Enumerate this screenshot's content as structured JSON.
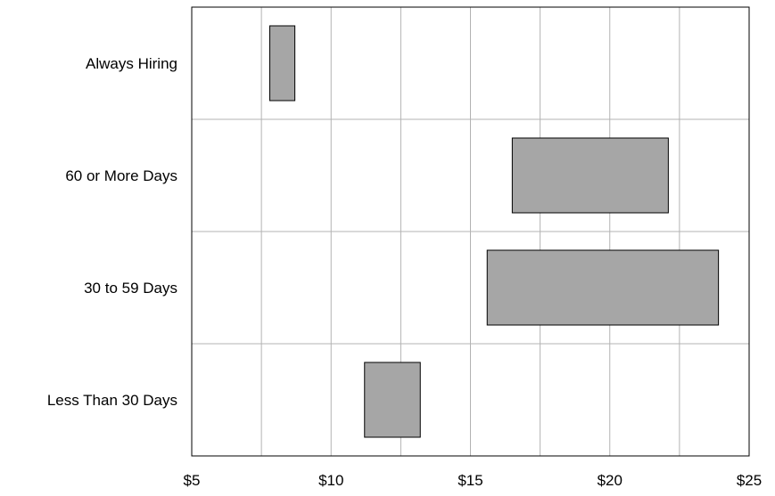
{
  "chart_data": {
    "type": "bar",
    "subtype": "floating-range-horizontal",
    "title": "",
    "xlabel": "",
    "ylabel": "",
    "categories": [
      "Always Hiring",
      "60 or More Days",
      "30 to 59 Days",
      "Less Than 30 Days"
    ],
    "ranges": [
      {
        "category": "Always Hiring",
        "low": 7.8,
        "high": 8.7
      },
      {
        "category": "60 or More Days",
        "low": 16.5,
        "high": 22.1
      },
      {
        "category": "30 to 59 Days",
        "low": 15.6,
        "high": 23.9
      },
      {
        "category": "Less Than 30 Days",
        "low": 11.2,
        "high": 13.2
      }
    ],
    "xlim": [
      5,
      25
    ],
    "x_ticks": [
      5,
      10,
      15,
      20,
      25
    ],
    "x_tick_labels": [
      "$5",
      "$10",
      "$15",
      "$20",
      "$25"
    ],
    "x_minor_step": 2.5,
    "grid": true,
    "legend": "none",
    "colors": {
      "bar_fill": "#a6a6a6",
      "bar_stroke": "#000000",
      "grid": "#b3b3b3",
      "frame": "#000000"
    }
  }
}
